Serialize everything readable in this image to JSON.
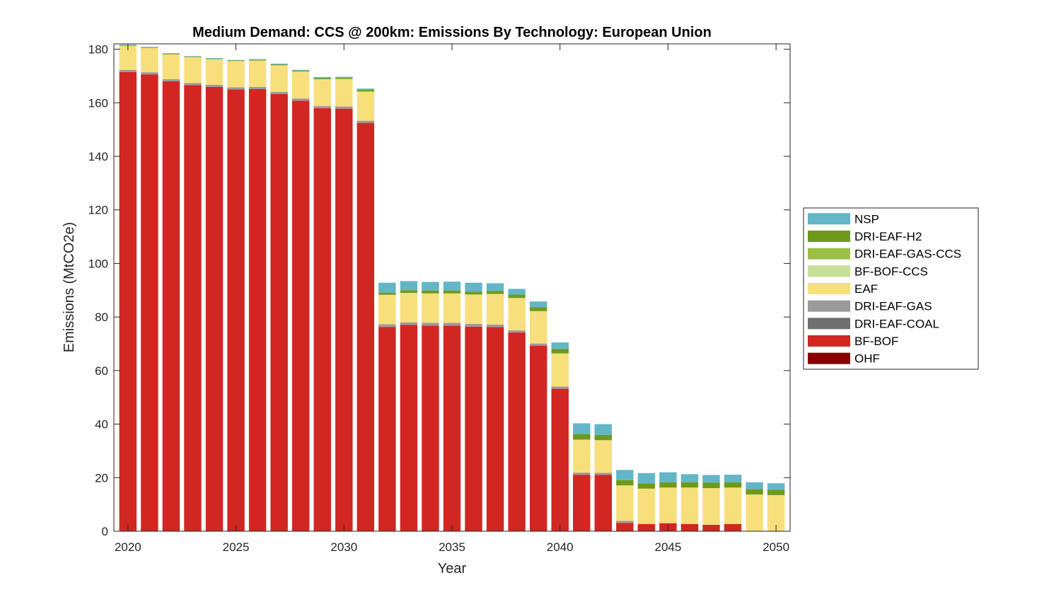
{
  "chart_data": {
    "type": "bar",
    "stacked": true,
    "title": "Medium Demand: CCS @ 200km: Emissions By Technology: European Union",
    "xlabel": "Year",
    "ylabel": "Emissions (MtCO2e)",
    "ylim": [
      0,
      182
    ],
    "xlim": [
      2019.35,
      2050.65
    ],
    "yticks": [
      0,
      20,
      40,
      60,
      80,
      100,
      120,
      140,
      160,
      180
    ],
    "xticks": [
      2020,
      2025,
      2030,
      2035,
      2040,
      2045,
      2050
    ],
    "grid": false,
    "legend_position": "right",
    "x": [
      2020,
      2021,
      2022,
      2023,
      2024,
      2025,
      2026,
      2027,
      2028,
      2029,
      2030,
      2031,
      2032,
      2033,
      2034,
      2035,
      2036,
      2037,
      2038,
      2039,
      2040,
      2041,
      2042,
      2043,
      2044,
      2045,
      2046,
      2047,
      2048,
      2049,
      2050
    ],
    "series": [
      {
        "name": "OHF",
        "color": "#8b0000",
        "values": [
          0,
          0,
          0,
          0,
          0,
          0,
          0,
          0,
          0,
          0,
          0,
          0,
          0,
          0,
          0,
          0,
          0,
          0,
          0,
          0,
          0,
          0,
          0,
          0,
          0,
          0,
          0,
          0,
          0,
          0,
          0
        ]
      },
      {
        "name": "BF-BOF",
        "color": "#d22623",
        "values": [
          171.5,
          170.6,
          168.0,
          166.6,
          165.9,
          165.0,
          165.1,
          163.3,
          160.8,
          158.0,
          157.8,
          152.5,
          76.3,
          77.0,
          76.8,
          76.8,
          76.4,
          76.2,
          74.2,
          69.3,
          53.2,
          21.1,
          21.0,
          3.1,
          2.7,
          3.0,
          2.7,
          2.4,
          2.7,
          0,
          0
        ]
      },
      {
        "name": "DRI-EAF-COAL",
        "color": "#707070",
        "values": [
          0,
          0,
          0,
          0,
          0,
          0,
          0,
          0,
          0,
          0,
          0,
          0,
          0,
          0,
          0,
          0,
          0,
          0,
          0,
          0,
          0,
          0,
          0,
          0,
          0,
          0,
          0,
          0,
          0,
          0,
          0
        ]
      },
      {
        "name": "DRI-EAF-GAS",
        "color": "#9b9b9b",
        "values": [
          0.8,
          0.8,
          0.8,
          0.8,
          0.8,
          0.8,
          0.8,
          0.8,
          0.8,
          0.8,
          0.8,
          0.8,
          1.0,
          1.0,
          1.0,
          1.0,
          1.0,
          1.0,
          0.8,
          0.8,
          0.8,
          0.8,
          0.8,
          0.8,
          0,
          0,
          0,
          0,
          0,
          0,
          0
        ]
      },
      {
        "name": "EAF",
        "color": "#f7df7c",
        "values": [
          9.0,
          9.1,
          9.3,
          9.6,
          9.6,
          9.8,
          9.9,
          9.9,
          10.1,
          10.0,
          10.3,
          10.9,
          11.0,
          11.0,
          11.0,
          11.0,
          11.0,
          11.4,
          12.1,
          12.1,
          12.4,
          12.3,
          12.2,
          13.2,
          13.2,
          13.3,
          13.6,
          13.7,
          13.6,
          13.7,
          13.5
        ]
      },
      {
        "name": "BF-BOF-CCS",
        "color": "#c8df98",
        "values": [
          0,
          0,
          0,
          0,
          0,
          0,
          0,
          0,
          0,
          0,
          0,
          0,
          0,
          0,
          0,
          0,
          0,
          0,
          0,
          0,
          0,
          0,
          0,
          0,
          0,
          0,
          0,
          0,
          0,
          0,
          0
        ]
      },
      {
        "name": "DRI-EAF-GAS-CCS",
        "color": "#9bc045",
        "values": [
          0,
          0,
          0,
          0,
          0,
          0,
          0,
          0,
          0,
          0,
          0,
          0,
          0,
          0,
          0,
          0,
          0,
          0,
          0,
          0,
          0,
          0,
          0,
          0,
          0,
          0,
          0,
          0,
          0,
          0,
          0
        ]
      },
      {
        "name": "DRI-EAF-H2",
        "color": "#6e9a1c",
        "values": [
          0.2,
          0.2,
          0.2,
          0.2,
          0.2,
          0.2,
          0.3,
          0.3,
          0.3,
          0.4,
          0.4,
          0.6,
          0.8,
          1.0,
          1.1,
          1.1,
          1.1,
          1.1,
          1.3,
          1.5,
          1.7,
          2.0,
          2.0,
          2.0,
          2.0,
          2.0,
          2.0,
          2.0,
          2.0,
          2.0,
          2.0
        ]
      },
      {
        "name": "NSP",
        "color": "#63b6c8",
        "values": [
          0.2,
          0.2,
          0.2,
          0.2,
          0.2,
          0.2,
          0.2,
          0.3,
          0.3,
          0.4,
          0.4,
          0.5,
          3.7,
          3.4,
          3.2,
          3.3,
          3.3,
          2.9,
          2.1,
          2.1,
          2.4,
          4.1,
          4.0,
          3.8,
          3.8,
          3.7,
          3.0,
          2.9,
          2.8,
          2.6,
          2.4
        ]
      }
    ]
  }
}
